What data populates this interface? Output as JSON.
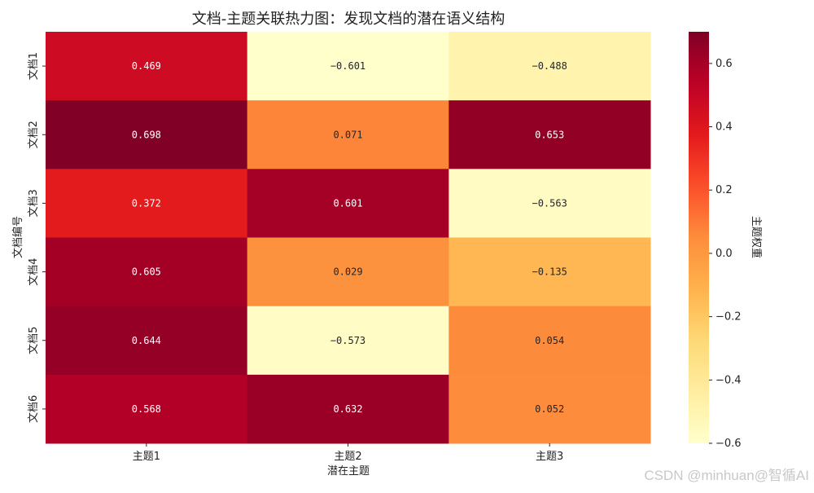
{
  "chart_data": {
    "type": "heatmap",
    "title": "文档-主题关联热力图：发现文档的潜在语义结构",
    "xlabel": "潜在主题",
    "ylabel": "文档编号",
    "x_categories": [
      "主题1",
      "主题2",
      "主题3"
    ],
    "y_categories": [
      "文档1",
      "文档2",
      "文档3",
      "文档4",
      "文档5",
      "文档6"
    ],
    "values": [
      [
        0.469,
        -0.601,
        -0.488
      ],
      [
        0.698,
        0.071,
        0.653
      ],
      [
        0.372,
        0.601,
        -0.563
      ],
      [
        0.605,
        0.029,
        -0.135
      ],
      [
        0.644,
        -0.573,
        0.054
      ],
      [
        0.568,
        0.632,
        0.052
      ]
    ],
    "value_labels": [
      [
        "0.469",
        "−0.601",
        "−0.488"
      ],
      [
        "0.698",
        "0.071",
        "0.653"
      ],
      [
        "0.372",
        "0.601",
        "−0.563"
      ],
      [
        "0.605",
        "0.029",
        "−0.135"
      ],
      [
        "0.644",
        "−0.573",
        "0.054"
      ],
      [
        "0.568",
        "0.632",
        "0.052"
      ]
    ],
    "colormap": "YlOrRd",
    "vmin": -0.6,
    "vmax": 0.7,
    "colorbar": {
      "label": "主题权重",
      "ticks": [
        -0.6,
        -0.4,
        -0.2,
        0.0,
        0.2,
        0.4,
        0.6
      ],
      "tick_labels": [
        "−0.6",
        "−0.4",
        "−0.2",
        "0.0",
        "0.2",
        "0.4",
        "0.6"
      ]
    }
  },
  "watermark": "CSDN @minhuan@智循AI"
}
